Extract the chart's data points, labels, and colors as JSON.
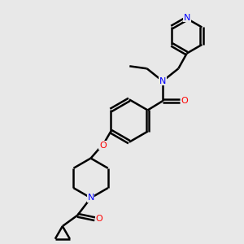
{
  "bg_color": "#e8e8e8",
  "bond_color": "#000000",
  "bond_width": 1.8,
  "atom_colors": {
    "N": "#0000ff",
    "O": "#ff0000",
    "C": "#000000"
  },
  "figsize": [
    3.0,
    3.0
  ],
  "dpi": 100
}
